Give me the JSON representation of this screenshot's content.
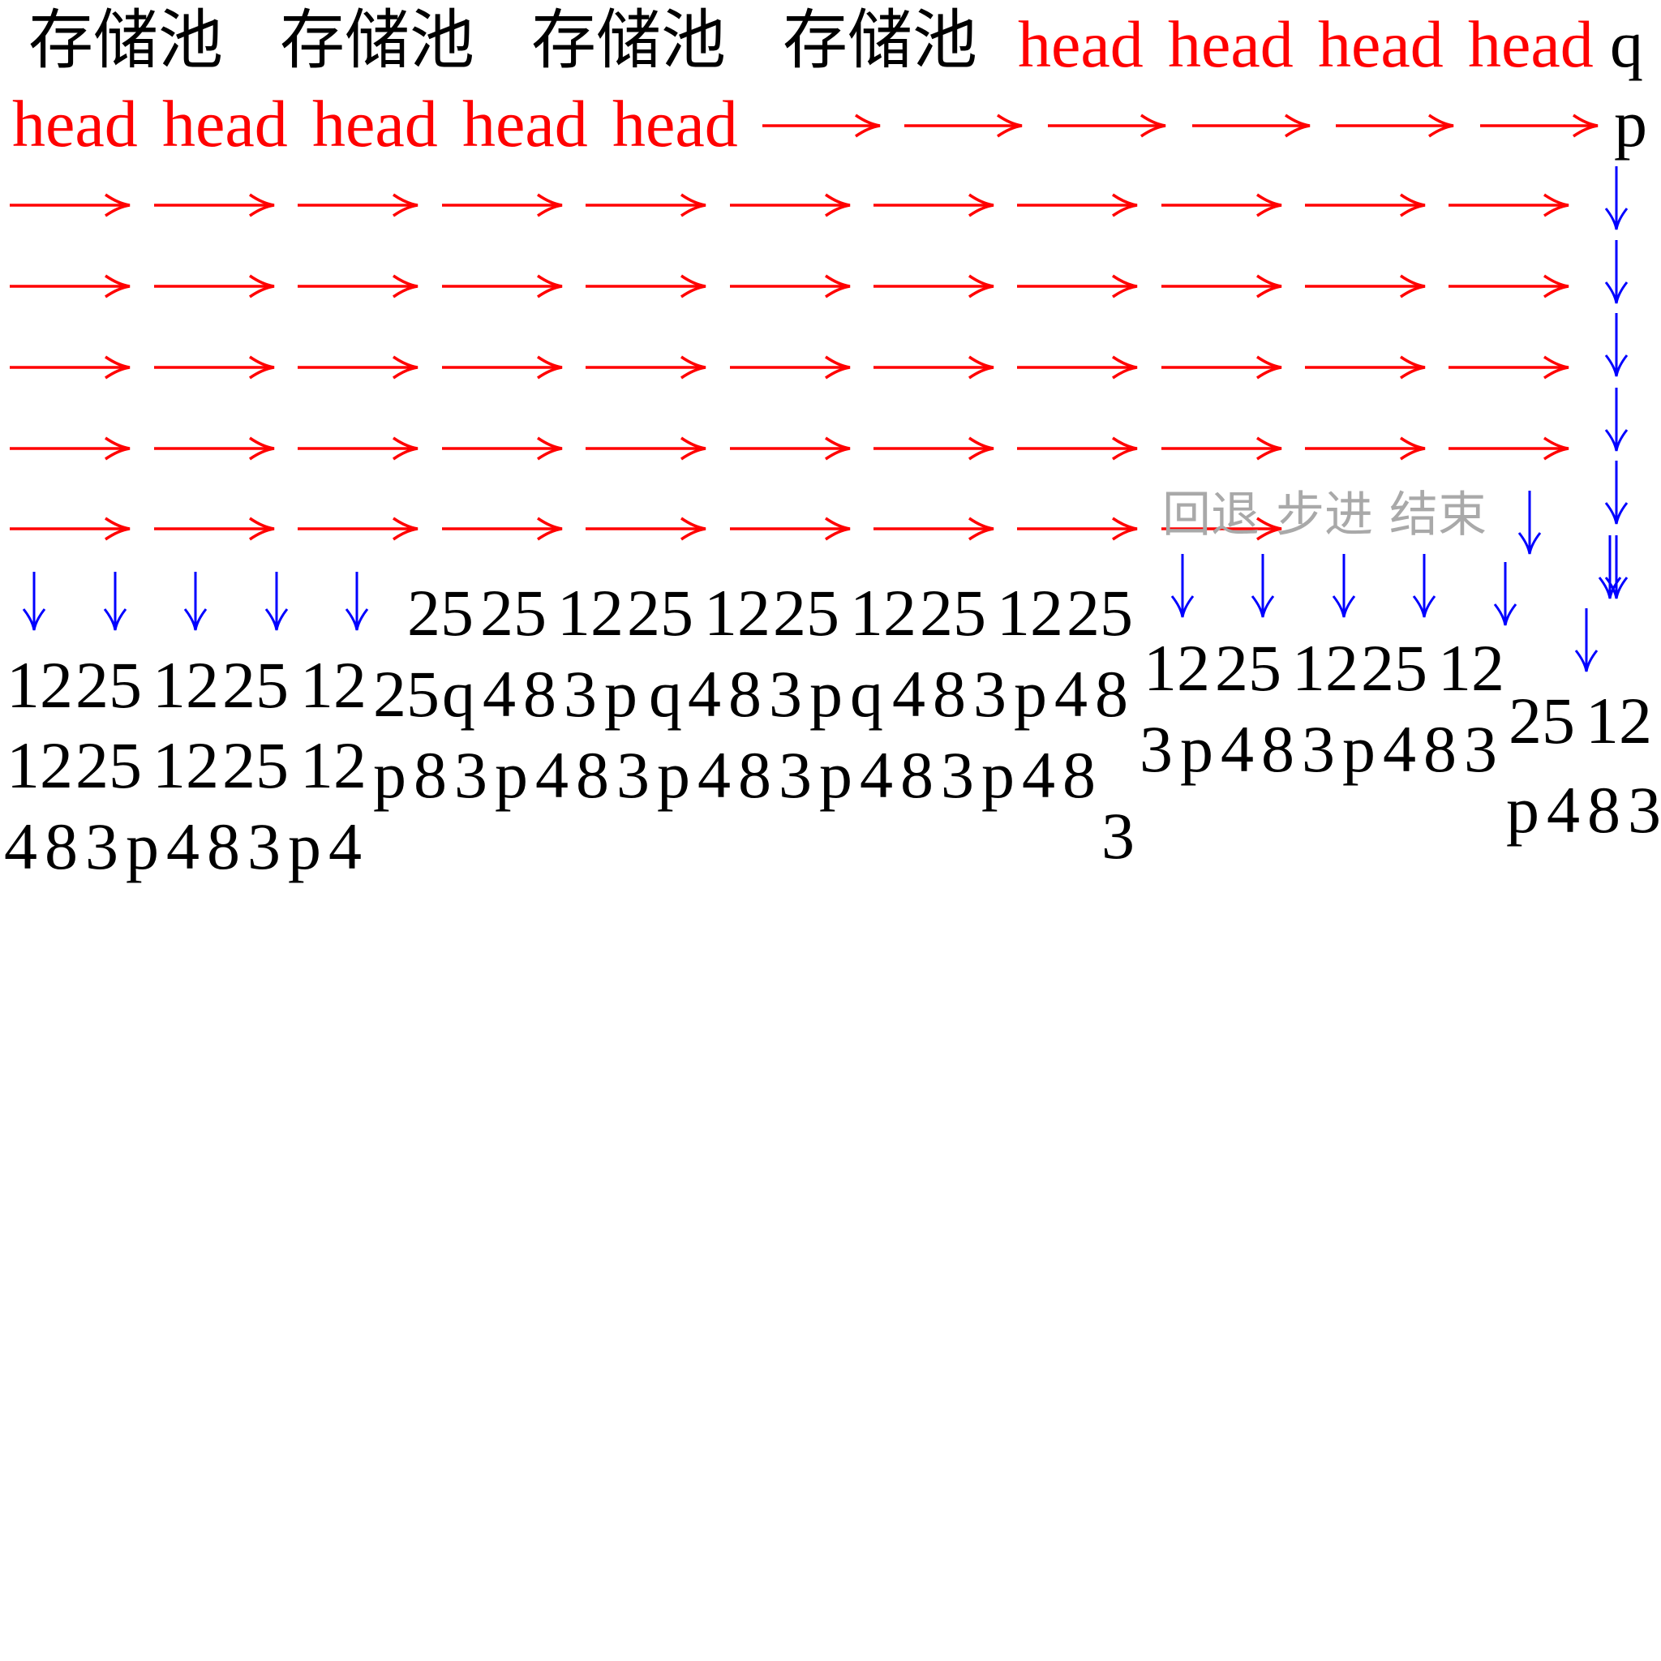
{
  "colors": {
    "black": "#000000",
    "red": "#ff0000",
    "blue": "#0000ff",
    "gray": "#a9a9a9"
  },
  "headers": {
    "pool": [
      "存储池",
      "存储池",
      "存储池",
      "存储池"
    ],
    "head_row1": [
      "head",
      "head",
      "head",
      "head"
    ],
    "q": "q",
    "head_row2": [
      "head",
      "head",
      "head",
      "head",
      "head"
    ],
    "p": "p"
  },
  "controls": {
    "back": "回退",
    "step": "步进",
    "end": "结束"
  },
  "cells": {
    "r1": [
      "12",
      "25",
      "12",
      "25",
      "12"
    ],
    "mid_top": [
      "25",
      "25",
      "12",
      "25",
      "12",
      "25",
      "12",
      "25",
      "12",
      "25"
    ],
    "r2": [
      "12",
      "25",
      "12",
      "25",
      "12"
    ],
    "r3": [
      "4",
      "8",
      "3",
      "p",
      "4",
      "8",
      "3",
      "p",
      "4"
    ],
    "m1": [
      "25",
      "q",
      "4",
      "8",
      "3",
      "p",
      "q",
      "4",
      "8",
      "3",
      "p",
      "q",
      "4",
      "8",
      "3",
      "p",
      "4",
      "8"
    ],
    "m2": [
      "p",
      "8",
      "3",
      "p",
      "4",
      "8",
      "3",
      "p",
      "4",
      "8",
      "3",
      "p",
      "4",
      "8",
      "3",
      "p",
      "4",
      "8"
    ],
    "m3": [
      "3"
    ],
    "right_top": [
      "12",
      "25",
      "12",
      "25",
      "12"
    ],
    "right_bot": [
      "3",
      "p",
      "4",
      "8",
      "3",
      "p",
      "4",
      "8",
      "3"
    ],
    "far_top": [
      "25",
      "12"
    ],
    "far_bot": [
      "p",
      "4",
      "8",
      "3"
    ]
  }
}
